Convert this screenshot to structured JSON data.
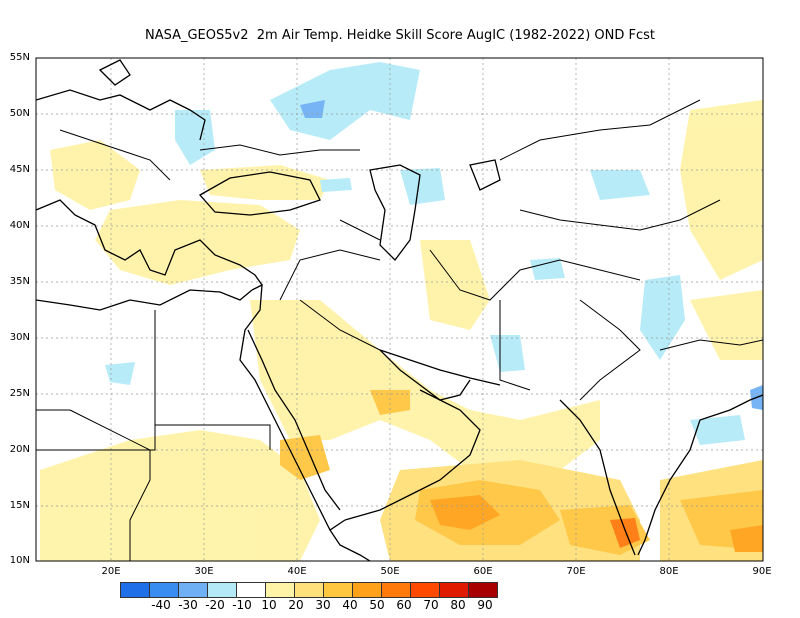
{
  "title": "NASA_GEOS5v2  2m Air Temp. Heidke Skill Score AugIC (1982-2022) OND Fcst",
  "axes": {
    "lat_labels": [
      "55N",
      "50N",
      "45N",
      "40N",
      "35N",
      "30N",
      "25N",
      "20N",
      "15N",
      "10N"
    ],
    "lon_labels": [
      "20E",
      "30E",
      "40E",
      "50E",
      "60E",
      "70E",
      "80E",
      "90E"
    ]
  },
  "colorbar": {
    "labels": [
      "-40",
      "-30",
      "-20",
      "-10",
      "10",
      "20",
      "30",
      "40",
      "50",
      "60",
      "70",
      "80",
      "90"
    ],
    "colors": [
      "#1e6fe8",
      "#3a8df0",
      "#6fb0f5",
      "#b4eaf8",
      "#ffffff",
      "#fff3a8",
      "#ffe07a",
      "#ffc640",
      "#ffa21a",
      "#ff7a0a",
      "#ff4a00",
      "#e01a00",
      "#a80000"
    ]
  }
}
